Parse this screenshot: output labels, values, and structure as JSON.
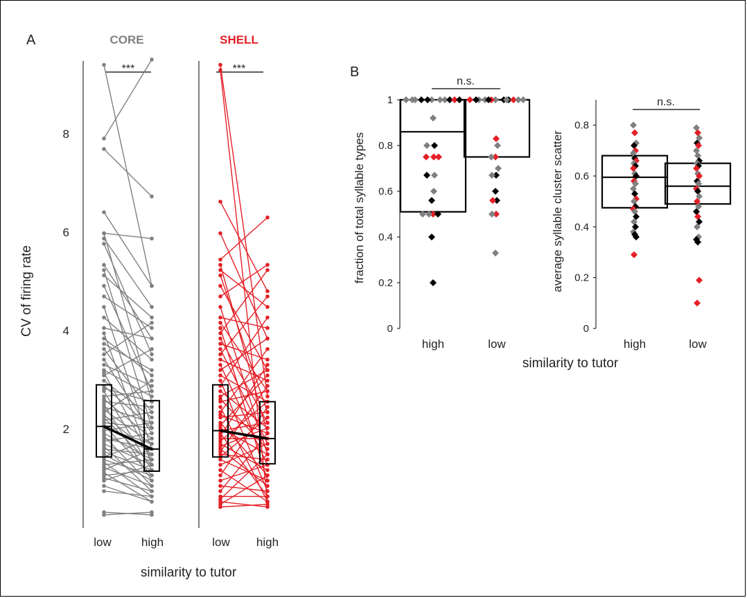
{
  "panels": {
    "a_label": "A",
    "b_label": "B"
  },
  "colors": {
    "core": "#808080",
    "shell": "#e41f26",
    "black": "#000000"
  },
  "chart_data": [
    {
      "type": "line",
      "panel": "A",
      "title": "CORE",
      "ylabel": "CV of firing rate",
      "xlabel": "similarity to tutor",
      "categories": [
        "low",
        "high"
      ],
      "ylim": [
        0,
        9.4
      ],
      "yticks": [
        2,
        4,
        6,
        8
      ],
      "significance": "***",
      "color": "#808080",
      "pairs": [
        [
          8.8,
          4.6
        ],
        [
          7.4,
          8.9
        ],
        [
          7.2,
          6.3
        ],
        [
          6.0,
          4.6
        ],
        [
          5.6,
          2.4
        ],
        [
          5.6,
          5.5
        ],
        [
          5.5,
          4.2
        ],
        [
          5.4,
          3.3
        ],
        [
          5.0,
          3.6
        ],
        [
          4.9,
          1.9
        ],
        [
          4.8,
          4.0
        ],
        [
          4.6,
          2.6
        ],
        [
          4.4,
          3.8
        ],
        [
          4.2,
          1.5
        ],
        [
          4.0,
          3.2
        ],
        [
          3.8,
          3.6
        ],
        [
          3.7,
          1.2
        ],
        [
          3.6,
          2.9
        ],
        [
          3.5,
          3.0
        ],
        [
          3.4,
          2.2
        ],
        [
          3.3,
          3.9
        ],
        [
          3.2,
          1.8
        ],
        [
          3.1,
          2.7
        ],
        [
          3.0,
          2.5
        ],
        [
          2.95,
          1.3
        ],
        [
          2.9,
          3.4
        ],
        [
          2.8,
          2.1
        ],
        [
          2.7,
          1.9
        ],
        [
          2.65,
          2.4
        ],
        [
          2.6,
          1.1
        ],
        [
          2.5,
          2.6
        ],
        [
          2.45,
          1.7
        ],
        [
          2.4,
          2.3
        ],
        [
          2.35,
          0.9
        ],
        [
          2.3,
          2.0
        ],
        [
          2.25,
          1.6
        ],
        [
          2.2,
          2.8
        ],
        [
          2.15,
          1.4
        ],
        [
          2.1,
          1.2
        ],
        [
          2.05,
          2.2
        ],
        [
          2.0,
          1.9
        ],
        [
          1.95,
          1.0
        ],
        [
          1.9,
          1.6
        ],
        [
          1.85,
          2.0
        ],
        [
          1.8,
          1.3
        ],
        [
          1.75,
          0.8
        ],
        [
          1.7,
          1.5
        ],
        [
          1.65,
          1.8
        ],
        [
          1.6,
          1.2
        ],
        [
          1.55,
          0.7
        ],
        [
          1.5,
          1.4
        ],
        [
          1.45,
          1.1
        ],
        [
          1.4,
          0.9
        ],
        [
          1.35,
          1.7
        ],
        [
          1.3,
          1.0
        ],
        [
          1.25,
          0.6
        ],
        [
          1.2,
          1.3
        ],
        [
          1.15,
          0.8
        ],
        [
          1.1,
          1.5
        ],
        [
          1.05,
          0.5
        ],
        [
          1.0,
          1.1
        ],
        [
          0.95,
          0.7
        ],
        [
          0.9,
          1.2
        ],
        [
          0.8,
          0.5
        ],
        [
          0.7,
          0.6
        ],
        [
          0.3,
          0.25
        ],
        [
          0.25,
          0.3
        ]
      ],
      "boxes": [
        {
          "category": "low",
          "q1": 1.35,
          "median": 1.93,
          "q3": 2.72
        },
        {
          "category": "high",
          "q1": 1.08,
          "median": 1.5,
          "q3": 2.42
        }
      ]
    },
    {
      "type": "line",
      "panel": "A",
      "title": "SHELL",
      "xlabel": "similarity to tutor",
      "categories": [
        "low",
        "high"
      ],
      "ylim": [
        0,
        9.4
      ],
      "significance": "***",
      "color": "#e41f26",
      "pairs": [
        [
          8.8,
          2.5
        ],
        [
          8.7,
          0.5
        ],
        [
          6.2,
          4.5
        ],
        [
          5.6,
          3.6
        ],
        [
          5.1,
          5.9
        ],
        [
          5.0,
          1.8
        ],
        [
          4.9,
          4.2
        ],
        [
          4.8,
          2.2
        ],
        [
          4.6,
          3.0
        ],
        [
          4.4,
          5.0
        ],
        [
          4.2,
          1.4
        ],
        [
          4.0,
          3.8
        ],
        [
          3.9,
          2.6
        ],
        [
          3.8,
          0.9
        ],
        [
          3.7,
          4.9
        ],
        [
          3.6,
          2.0
        ],
        [
          3.5,
          3.2
        ],
        [
          3.4,
          1.6
        ],
        [
          3.3,
          4.4
        ],
        [
          3.2,
          2.8
        ],
        [
          3.1,
          1.2
        ],
        [
          3.0,
          3.6
        ],
        [
          2.9,
          2.4
        ],
        [
          2.8,
          0.7
        ],
        [
          2.7,
          4.0
        ],
        [
          2.6,
          1.9
        ],
        [
          2.5,
          3.0
        ],
        [
          2.45,
          1.5
        ],
        [
          2.4,
          2.6
        ],
        [
          2.3,
          0.5
        ],
        [
          2.2,
          3.4
        ],
        [
          2.15,
          1.8
        ],
        [
          2.1,
          2.2
        ],
        [
          2.0,
          1.0
        ],
        [
          1.95,
          2.9
        ],
        [
          1.9,
          1.4
        ],
        [
          1.85,
          2.0
        ],
        [
          1.8,
          0.6
        ],
        [
          1.75,
          3.1
        ],
        [
          1.7,
          1.7
        ],
        [
          1.65,
          2.4
        ],
        [
          1.6,
          1.1
        ],
        [
          1.55,
          1.9
        ],
        [
          1.5,
          0.8
        ],
        [
          1.45,
          2.7
        ],
        [
          1.4,
          1.3
        ],
        [
          1.35,
          2.1
        ],
        [
          1.3,
          0.9
        ],
        [
          1.2,
          1.6
        ],
        [
          1.1,
          0.5
        ],
        [
          1.0,
          2.3
        ],
        [
          0.9,
          1.2
        ],
        [
          0.8,
          0.7
        ],
        [
          0.7,
          1.8
        ],
        [
          0.6,
          0.6
        ],
        [
          0.55,
          1.4
        ],
        [
          0.5,
          0.4
        ],
        [
          0.45,
          1.0
        ],
        [
          0.4,
          0.45
        ]
      ],
      "boxes": [
        {
          "category": "low",
          "q1": 1.35,
          "median": 1.85,
          "q3": 2.72
        },
        {
          "category": "high",
          "q1": 1.22,
          "median": 1.7,
          "q3": 2.4
        }
      ]
    },
    {
      "type": "scatter",
      "panel": "B",
      "ylabel": "fraction of total syllable types",
      "xlabel": "similarity to tutor",
      "categories": [
        "high",
        "low"
      ],
      "ylim": [
        0,
        1
      ],
      "yticks": [
        0,
        0.2,
        0.4,
        0.6,
        0.8,
        1
      ],
      "significance": "n.s.",
      "boxes": [
        {
          "category": "high",
          "q1": 0.51,
          "median": 0.86,
          "q3": 1.0
        },
        {
          "category": "low",
          "q1": 0.75,
          "median": 1.0,
          "q3": 1.0
        }
      ],
      "points": [
        {
          "category": "high",
          "values": [
            1,
            1,
            1,
            1,
            1,
            1,
            1,
            1,
            1,
            1,
            1,
            0.92,
            0.8,
            0.8,
            0.75,
            0.75,
            0.75,
            0.67,
            0.67,
            0.6,
            0.56,
            0.5,
            0.5,
            0.5,
            0.5,
            0.4,
            0.2
          ],
          "groups": [
            "grey",
            "black",
            "grey",
            "black",
            "grey",
            "grey",
            "black",
            "grey",
            "red",
            "grey",
            "black",
            "grey",
            "black",
            "grey",
            "red",
            "red",
            "red",
            "grey",
            "black",
            "grey",
            "black",
            "red",
            "grey",
            "black",
            "grey",
            "black",
            "black"
          ]
        },
        {
          "category": "low",
          "values": [
            1,
            1,
            1,
            1,
            1,
            1,
            1,
            1,
            1,
            1,
            1,
            1,
            1,
            0.83,
            0.8,
            0.75,
            0.75,
            0.7,
            0.67,
            0.67,
            0.6,
            0.56,
            0.56,
            0.5,
            0.5,
            0.33
          ],
          "groups": [
            "grey",
            "red",
            "black",
            "grey",
            "black",
            "grey",
            "red",
            "black",
            "grey",
            "red",
            "grey",
            "black",
            "grey",
            "red",
            "grey",
            "red",
            "grey",
            "grey",
            "black",
            "grey",
            "black",
            "black",
            "red",
            "red",
            "grey",
            "grey"
          ]
        }
      ]
    },
    {
      "type": "scatter",
      "panel": "B",
      "ylabel": "average syllable cluster scatter",
      "xlabel": "similarity to tutor",
      "categories": [
        "high",
        "low"
      ],
      "ylim": [
        0,
        0.9
      ],
      "yticks": [
        0,
        0.2,
        0.4,
        0.6,
        0.8
      ],
      "significance": "n.s.",
      "boxes": [
        {
          "category": "high",
          "q1": 0.475,
          "median": 0.595,
          "q3": 0.68
        },
        {
          "category": "low",
          "q1": 0.49,
          "median": 0.56,
          "q3": 0.65
        }
      ],
      "points": [
        {
          "category": "high",
          "values": [
            0.8,
            0.77,
            0.73,
            0.72,
            0.7,
            0.69,
            0.67,
            0.66,
            0.65,
            0.64,
            0.63,
            0.61,
            0.6,
            0.58,
            0.57,
            0.55,
            0.53,
            0.51,
            0.5,
            0.48,
            0.47,
            0.46,
            0.44,
            0.42,
            0.4,
            0.38,
            0.37,
            0.36,
            0.29
          ],
          "groups": [
            "grey",
            "red",
            "grey",
            "black",
            "red",
            "grey",
            "black",
            "red",
            "grey",
            "black",
            "red",
            "grey",
            "black",
            "red",
            "grey",
            "grey",
            "black",
            "red",
            "grey",
            "black",
            "red",
            "grey",
            "black",
            "grey",
            "black",
            "grey",
            "black",
            "black",
            "red"
          ]
        },
        {
          "category": "low",
          "values": [
            0.79,
            0.77,
            0.75,
            0.73,
            0.72,
            0.7,
            0.68,
            0.66,
            0.65,
            0.64,
            0.63,
            0.61,
            0.6,
            0.58,
            0.57,
            0.55,
            0.54,
            0.52,
            0.5,
            0.48,
            0.46,
            0.44,
            0.42,
            0.4,
            0.36,
            0.35,
            0.34,
            0.19,
            0.1
          ],
          "groups": [
            "grey",
            "red",
            "grey",
            "black",
            "red",
            "grey",
            "grey",
            "black",
            "grey",
            "black",
            "red",
            "grey",
            "red",
            "black",
            "grey",
            "red",
            "black",
            "grey",
            "red",
            "grey",
            "black",
            "red",
            "black",
            "grey",
            "grey",
            "black",
            "black",
            "red",
            "red"
          ]
        }
      ]
    }
  ]
}
